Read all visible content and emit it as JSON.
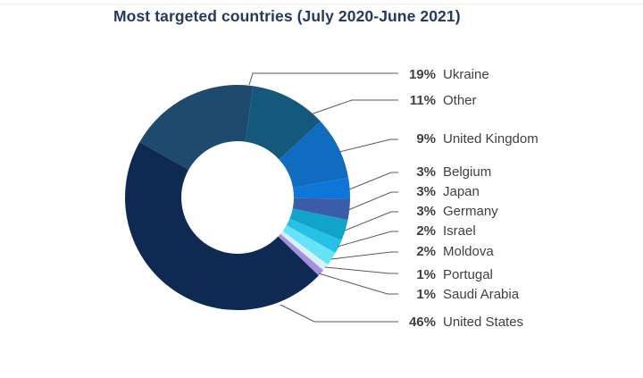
{
  "title": "Most targeted countries (July 2020-June 2021)",
  "colors": {
    "background": "#FFFFFF",
    "title_text": "#243A5E",
    "label_text": "#404040",
    "leader_line": "#595959",
    "top_rule": "#EAEAEA"
  },
  "chart_data": {
    "type": "pie",
    "subtype": "donut",
    "title": "Most targeted countries (July 2020-June 2021)",
    "unit": "%",
    "direction": "clockwise",
    "start_angle_deg": -60.5,
    "inner_radius_ratio": 0.5,
    "legend_position": "right-callout-labels",
    "slices": [
      {
        "label": "Ukraine",
        "value": 19,
        "color": "#1E4A6D"
      },
      {
        "label": "Other",
        "value": 11,
        "color": "#14587C"
      },
      {
        "label": "United Kingdom",
        "value": 9,
        "color": "#0F6CBE"
      },
      {
        "label": "Belgium",
        "value": 3,
        "color": "#0E76D8"
      },
      {
        "label": "Japan",
        "value": 3,
        "color": "#3C5BA8"
      },
      {
        "label": "Germany",
        "value": 3,
        "color": "#12A3C9"
      },
      {
        "label": "Israel",
        "value": 2,
        "color": "#25C1E6"
      },
      {
        "label": "Moldova",
        "value": 2,
        "color": "#66E3F5"
      },
      {
        "label": "Portugal",
        "value": 1,
        "color": "#D6F1F8"
      },
      {
        "label": "Saudi Arabia",
        "value": 1,
        "color": "#A690DE"
      },
      {
        "label": "United States",
        "value": 46,
        "color": "#0F2A52"
      }
    ]
  }
}
